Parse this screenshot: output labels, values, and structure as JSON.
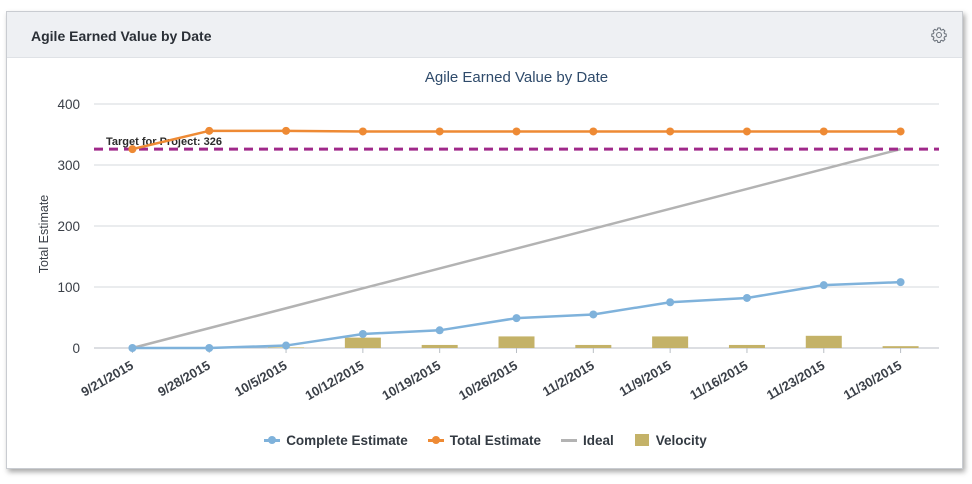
{
  "panel": {
    "title": "Agile Earned Value by Date",
    "settings_icon": "gear-icon"
  },
  "colors": {
    "complete": "#7fb2db",
    "total": "#ee8a34",
    "ideal": "#b3b3b3",
    "velocity": "#c4b268",
    "target": "#a0298a"
  },
  "chart_data": {
    "type": "line",
    "title": "Agile Earned Value by Date",
    "xlabel": "",
    "ylabel": "Total Estimate",
    "ylim": [
      0,
      400
    ],
    "yticks": [
      0,
      100,
      200,
      300,
      400
    ],
    "grid": true,
    "legend_position": "bottom",
    "categories": [
      "9/21/2015",
      "9/28/2015",
      "10/5/2015",
      "10/12/2015",
      "10/19/2015",
      "10/26/2015",
      "11/2/2015",
      "11/9/2015",
      "11/16/2015",
      "11/23/2015",
      "11/30/2015"
    ],
    "series": [
      {
        "name": "Complete Estimate",
        "type": "line",
        "values": [
          0,
          0,
          4,
          23,
          29,
          49,
          55,
          75,
          82,
          103,
          108
        ]
      },
      {
        "name": "Total Estimate",
        "type": "line",
        "values": [
          326,
          356,
          356,
          355,
          355,
          355,
          355,
          355,
          355,
          355,
          355
        ]
      },
      {
        "name": "Ideal",
        "type": "line",
        "values": [
          0,
          32.6,
          65.2,
          97.8,
          130.4,
          163,
          195.6,
          228.2,
          260.8,
          293.4,
          326
        ]
      },
      {
        "name": "Velocity",
        "type": "bar",
        "values": [
          0,
          0,
          1,
          17,
          5,
          19,
          5,
          19,
          5,
          20,
          3
        ]
      }
    ],
    "annotations": [
      {
        "label": "Target for Project: 326",
        "y": 326
      }
    ]
  }
}
